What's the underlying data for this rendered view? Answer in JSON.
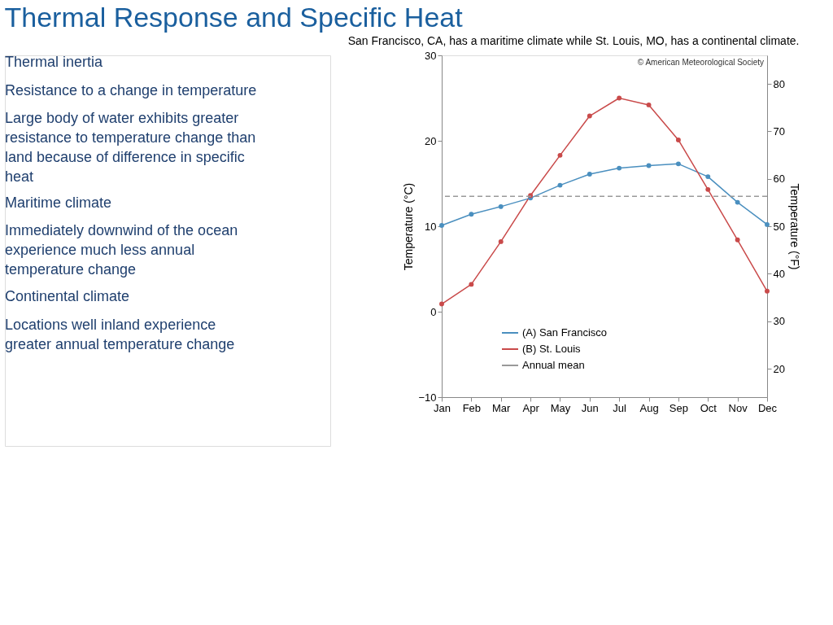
{
  "chart_data": {
    "type": "line",
    "title": "Thermal Response and Specific Heat",
    "subtitle": "San Francisco, CA, has a maritime climate while St. Louis, MO, has a continental climate.",
    "categories": [
      "Jan",
      "Feb",
      "Mar",
      "Apr",
      "May",
      "Jun",
      "Jul",
      "Aug",
      "Sep",
      "Oct",
      "Nov",
      "Dec"
    ],
    "series": [
      {
        "name": "(A) San Francisco",
        "color": "#4a8fbf",
        "values": [
          10.1,
          11.4,
          12.3,
          13.3,
          14.8,
          16.1,
          16.8,
          17.1,
          17.3,
          15.8,
          12.8,
          10.2
        ]
      },
      {
        "name": "(B) St. Louis",
        "color": "#c94a4a",
        "values": [
          0.9,
          3.2,
          8.2,
          13.6,
          18.3,
          22.9,
          25.0,
          24.2,
          20.1,
          14.3,
          8.4,
          2.4
        ]
      }
    ],
    "ref_lines": [
      {
        "axis": "y",
        "value": 13.5,
        "label": "Annual mean",
        "color": "#999999",
        "line_style": "dashed"
      }
    ],
    "ylabel": "Temperature (°C)",
    "y2label": "Temperature (°F)",
    "ylim": [
      -10,
      30
    ],
    "yticks": [
      -10,
      0,
      10,
      20,
      30
    ],
    "y2lim": [
      14,
      86
    ],
    "y2ticks": [
      20,
      30,
      40,
      50,
      60,
      70,
      80
    ],
    "grid": false,
    "legend": "bottom",
    "marker": "circle",
    "line_style": "solid",
    "annotations": [
      "© American Meteorological Society",
      "Thermal inertia",
      "Resistance to a change in temperature",
      "Large body of water exhibits greater resistance to temperature change than land because of difference in specific heat",
      "Maritime climate",
      "Immediately downwind of the ocean experience much less annual temperature change",
      "Continental climate",
      "Locations well inland experience greater annual temperature change"
    ]
  }
}
